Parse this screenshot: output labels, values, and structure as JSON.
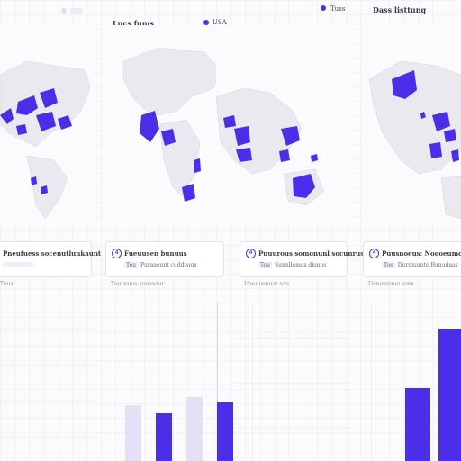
{
  "header": {
    "left_label": "Lucs fums",
    "left_chip": "USA",
    "right_legend": "Tuss",
    "right_title": "Dass listtung"
  },
  "colors": {
    "accent": "#4b2ee8",
    "accent_soft": "#e4e1f7",
    "land": "#e9e9ef",
    "border": "#d4d4de"
  },
  "cards": [
    {
      "badge": "",
      "title": "Pneufuess socenutlunkaunt",
      "sub": ""
    },
    {
      "badge": "4",
      "title": "Fueuusen bunuus",
      "sub_key": "Tou",
      "sub": "Puraaeunt cuddeaus"
    },
    {
      "badge": "4",
      "title": "Puuurous somonunl socunrus",
      "sub_key": "Tou",
      "sub": "Sunnllemas dlonos"
    },
    {
      "badge": "4",
      "title": "Puusnoeus: Noooeumott",
      "sub_key": "Toe",
      "sub": "Duruiuunte Bunudaas"
    }
  ],
  "captions": [
    "Tuus",
    "Tuuceuus sunusour",
    "Uueuueuuot sou",
    "Uoneuuuuo sous"
  ],
  "charts": [
    {
      "bars": []
    },
    {
      "bars": [
        {
          "value": 0.35,
          "style": "ghost"
        },
        {
          "value": 0.3,
          "style": "accent"
        },
        {
          "value": 0.4,
          "style": "ghost"
        },
        {
          "value": 0.37,
          "style": "accent"
        }
      ]
    },
    {
      "bars": []
    },
    {
      "bars": [
        {
          "value": 0.46,
          "style": "accent"
        },
        {
          "value": 0.83,
          "style": "accent"
        }
      ]
    }
  ]
}
